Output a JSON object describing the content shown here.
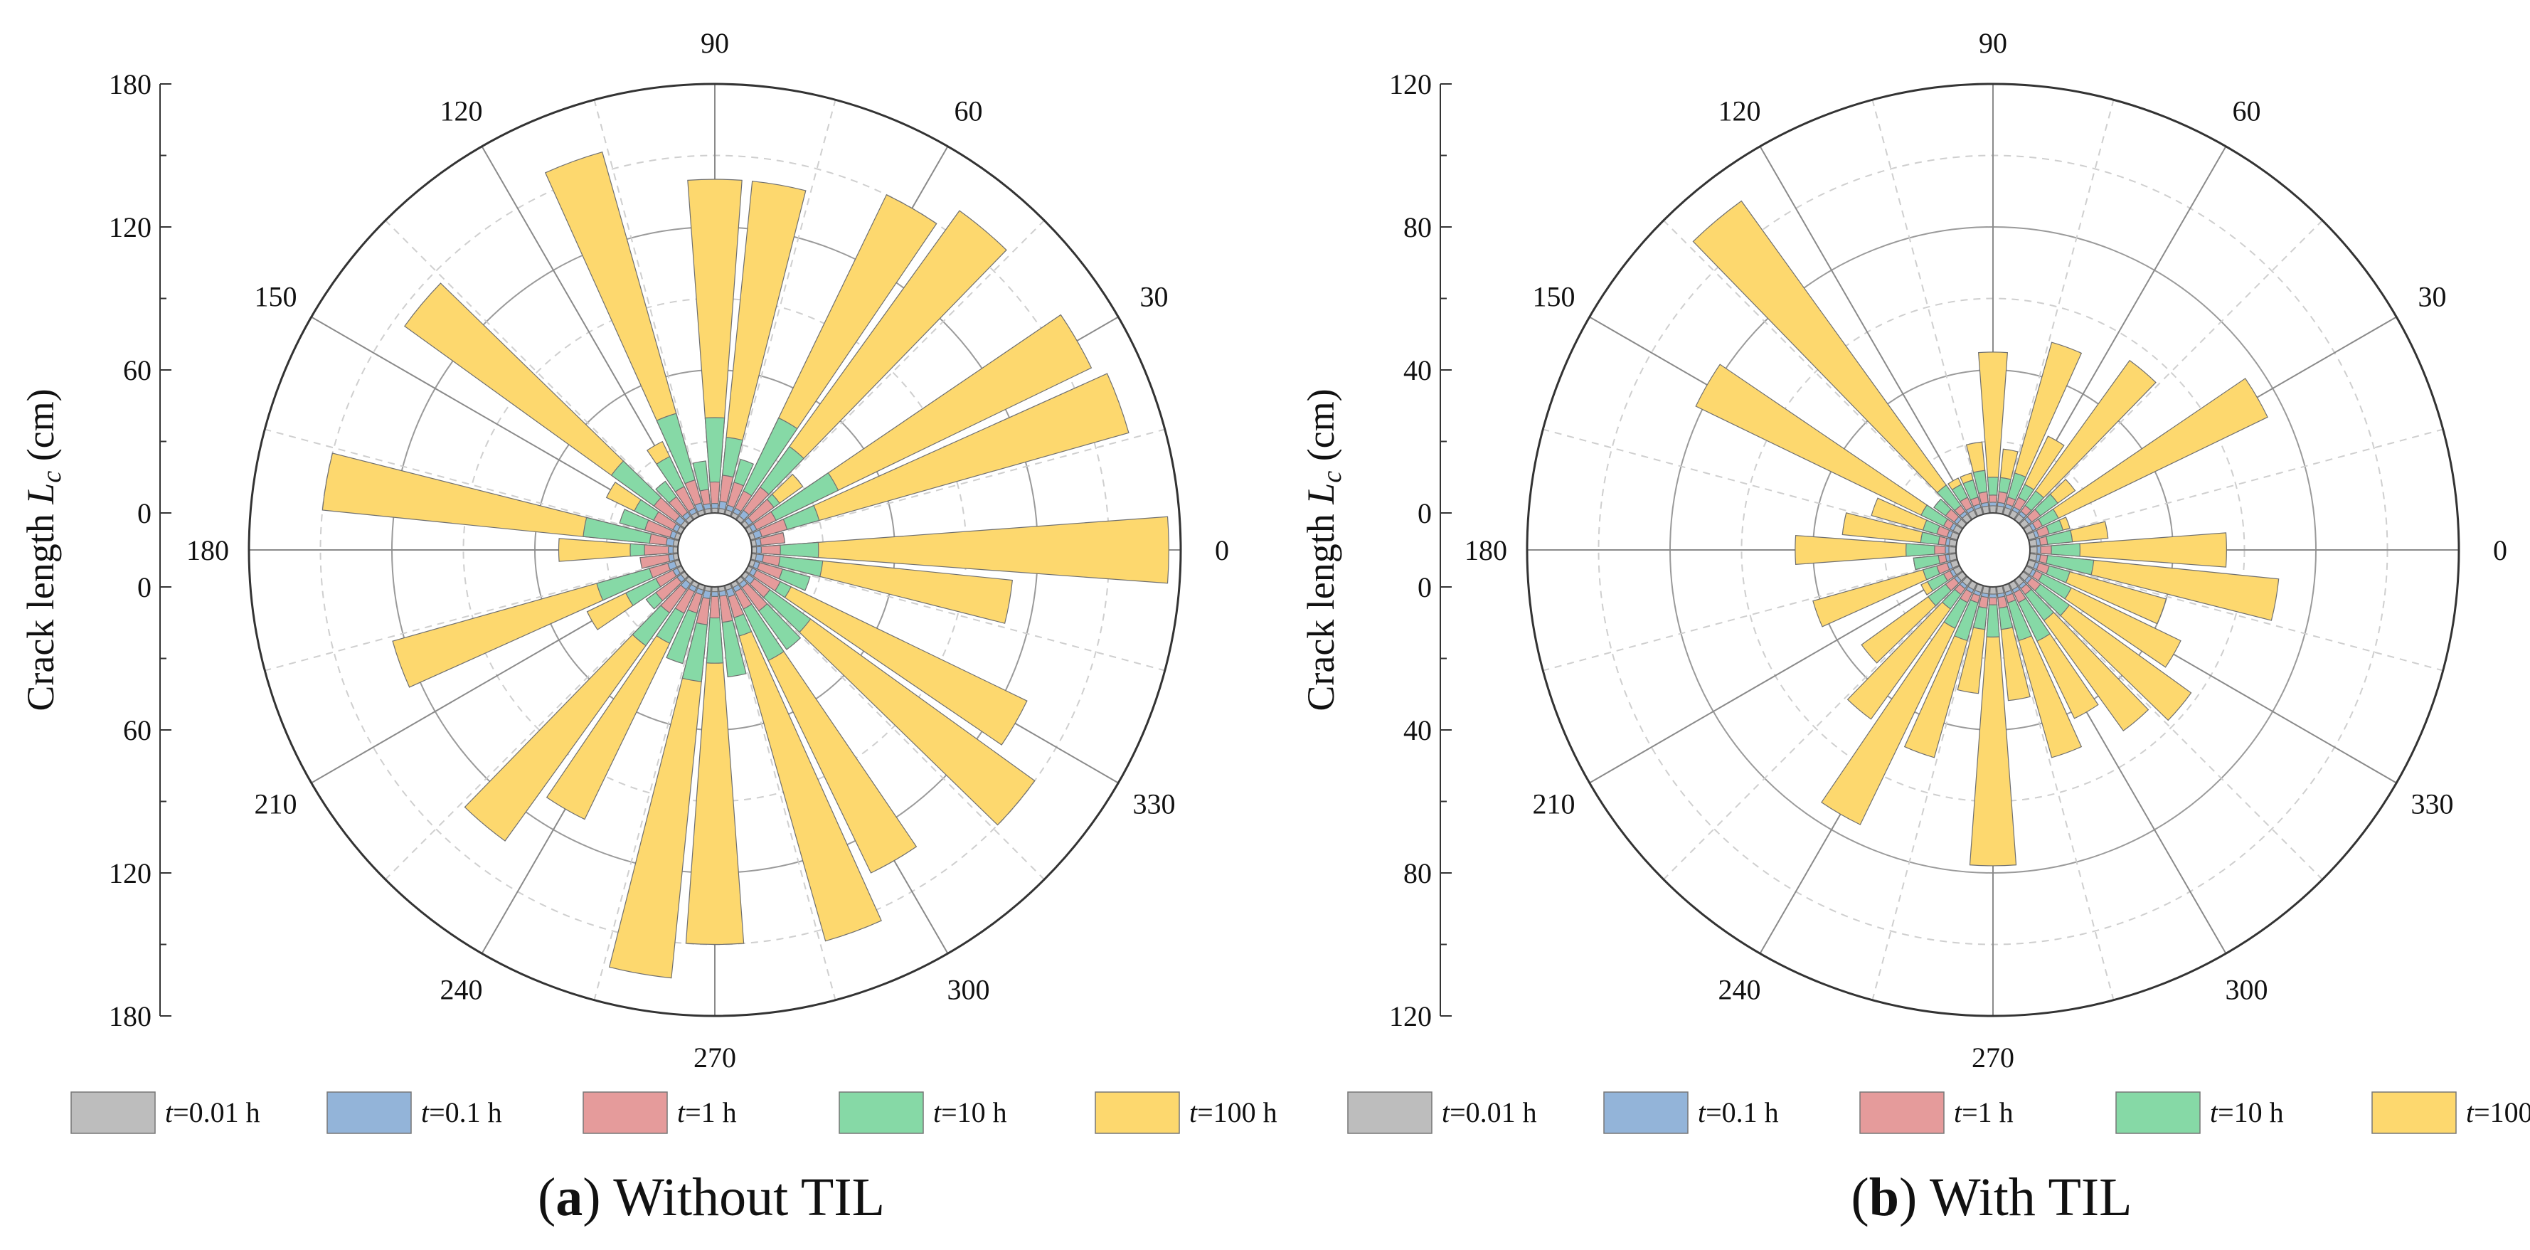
{
  "chart_data": [
    {
      "type": "polar-bar",
      "panel_label": "a",
      "caption": "Without TIL",
      "ylabel": "Crack length",
      "ylabel_symbol": "L",
      "ylabel_subscript": "c",
      "ylabel_unit": "(cm)",
      "r_max": 180,
      "r_ticks": [
        0,
        60,
        120,
        180
      ],
      "r_grid_solid": [
        60,
        120
      ],
      "angle_ticks": [
        0,
        30,
        60,
        90,
        120,
        150,
        180,
        210,
        240,
        270,
        300,
        330
      ],
      "series": [
        {
          "name": "t=0.01 h",
          "values": [
            2,
            2,
            2,
            2,
            2,
            2,
            2,
            2,
            2,
            2,
            2,
            2,
            2,
            2,
            2,
            2,
            2,
            2,
            2,
            2,
            2,
            2,
            2,
            2,
            2,
            2,
            2,
            2,
            2,
            2,
            2,
            2,
            2,
            2,
            2,
            2
          ]
        },
        {
          "name": "t=0.1 h",
          "values": [
            4,
            4,
            5,
            4,
            4,
            5,
            4,
            4,
            5,
            4,
            4,
            5,
            4,
            4,
            5,
            4,
            4,
            5,
            4,
            4,
            5,
            4,
            4,
            5,
            4,
            4,
            5,
            4,
            4,
            5,
            4,
            4,
            5,
            4,
            4,
            5
          ]
        },
        {
          "name": "t=1 h",
          "values": [
            12,
            14,
            16,
            13,
            15,
            17,
            12,
            14,
            16,
            13,
            10,
            15,
            14,
            12,
            16,
            13,
            15,
            12,
            14,
            16,
            13,
            12,
            15,
            17,
            14,
            12,
            16,
            13,
            15,
            14,
            12,
            16,
            13,
            15,
            14,
            12
          ]
        },
        {
          "name": "t=10 h",
          "values": [
            28,
            14,
            30,
            42,
            18,
            38,
            46,
            24,
            32,
            40,
            22,
            44,
            28,
            20,
            38,
            22,
            26,
            40,
            20,
            14,
            36,
            26,
            20,
            34,
            28,
            34,
            40,
            32,
            38,
            22,
            36,
            36,
            34,
            20,
            26,
            30
          ]
        },
        {
          "name": "t=100 h",
          "values": [
            175,
            6,
            165,
            160,
            30,
            160,
            150,
            12,
            140,
            140,
            15,
            158,
            35,
            10,
            145,
            35,
            16,
            150,
            50,
            10,
            125,
            44,
            15,
            135,
            110,
            20,
            165,
            150,
            18,
            155,
            135,
            22,
            150,
            130,
            20,
            110
          ]
        }
      ]
    },
    {
      "type": "polar-bar",
      "panel_label": "b",
      "caption": "With TIL",
      "ylabel": "Crack length",
      "ylabel_symbol": "L",
      "ylabel_subscript": "c",
      "ylabel_unit": "(cm)",
      "r_max": 120,
      "r_ticks": [
        0,
        40,
        80,
        120
      ],
      "r_grid_solid": [
        40,
        80
      ],
      "angle_ticks": [
        0,
        30,
        60,
        90,
        120,
        150,
        180,
        210,
        240,
        270,
        300,
        330
      ],
      "series": [
        {
          "name": "t=0.01 h",
          "values": [
            2,
            2,
            2,
            2,
            2,
            2,
            2,
            2,
            2,
            2,
            2,
            2,
            2,
            2,
            2,
            2,
            2,
            2,
            2,
            2,
            2,
            2,
            2,
            2,
            2,
            2,
            2,
            2,
            2,
            2,
            2,
            2,
            2,
            2,
            2,
            2
          ]
        },
        {
          "name": "t=0.1 h",
          "values": [
            3,
            3,
            3,
            3,
            3,
            3,
            3,
            3,
            3,
            3,
            3,
            3,
            3,
            3,
            3,
            3,
            3,
            3,
            3,
            3,
            3,
            3,
            3,
            3,
            3,
            3,
            3,
            3,
            3,
            3,
            3,
            3,
            3,
            3,
            3,
            3
          ]
        },
        {
          "name": "t=1 h",
          "values": [
            6,
            5,
            6,
            5,
            6,
            5,
            6,
            5,
            6,
            5,
            6,
            5,
            6,
            5,
            6,
            5,
            6,
            5,
            6,
            5,
            6,
            5,
            6,
            5,
            6,
            5,
            6,
            5,
            6,
            5,
            6,
            5,
            6,
            5,
            6,
            5
          ]
        },
        {
          "name": "t=10 h",
          "values": [
            14,
            12,
            10,
            10,
            12,
            10,
            10,
            12,
            10,
            10,
            12,
            10,
            10,
            12,
            10,
            12,
            10,
            10,
            14,
            12,
            10,
            10,
            12,
            10,
            14,
            16,
            12,
            14,
            12,
            16,
            18,
            14,
            16,
            14,
            12,
            18
          ]
        },
        {
          "name": "t=100 h",
          "values": [
            55,
            22,
            12,
            75,
            18,
            55,
            25,
            50,
            18,
            45,
            20,
            12,
            12,
            110,
            10,
            82,
            25,
            32,
            45,
            12,
            42,
            12,
            35,
            48,
            75,
            50,
            30,
            78,
            32,
            50,
            42,
            52,
            58,
            48,
            40,
            70
          ]
        }
      ]
    }
  ],
  "legend": [
    "t=0.01 h",
    "t=0.1 h",
    "t=1 h",
    "t=10 h",
    "t=100 h"
  ],
  "colors": {
    "t=0.01 h": "#bdbdbd",
    "t=0.1 h": "#93b4d9",
    "t=1 h": "#e59b9b",
    "t=10 h": "#86d9a6",
    "t=100 h": "#fdd86e"
  }
}
